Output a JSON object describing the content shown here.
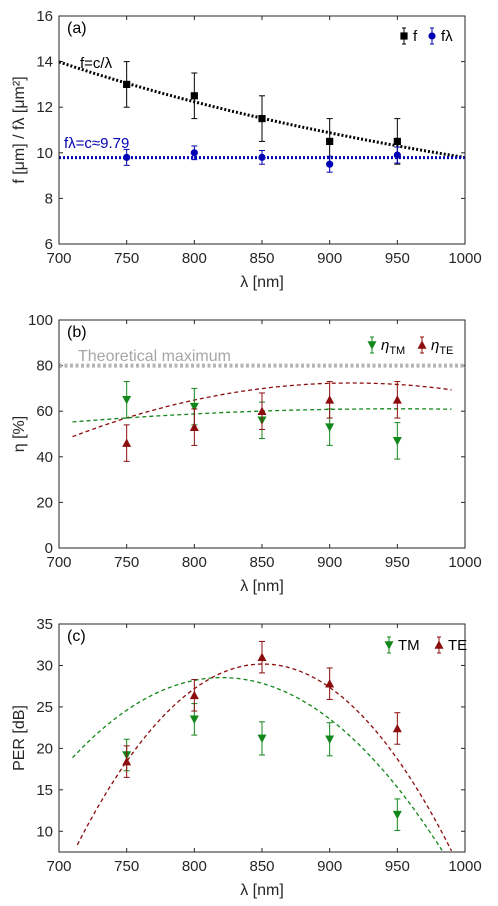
{
  "colors": {
    "black": "#000000",
    "blue": "#0000b4",
    "green": "#12871a",
    "red": "#8b0d0d",
    "gray": "#b4b4b4",
    "axis": "#262626"
  },
  "chart_data": [
    {
      "id": "a",
      "type": "scatter",
      "panel_label": "(a)",
      "xlabel": "λ [nm]",
      "ylabel": "f [μm] / fλ [μm²]",
      "xlim": [
        700,
        1000
      ],
      "ylim": [
        6,
        16
      ],
      "xticks": [
        700,
        750,
        800,
        850,
        900,
        950,
        1000
      ],
      "yticks": [
        6,
        8,
        10,
        12,
        14,
        16
      ],
      "legend_position": "top-right",
      "series": [
        {
          "name": "f",
          "marker": "square",
          "color": "#000000",
          "x": [
            750,
            800,
            850,
            900,
            950
          ],
          "y": [
            13.0,
            12.5,
            11.5,
            10.5,
            10.5
          ],
          "err": [
            1.0,
            1.0,
            1.0,
            1.0,
            1.0
          ]
        },
        {
          "name": "fλ",
          "marker": "circle",
          "color": "#0000b4",
          "x": [
            750,
            800,
            850,
            900,
            950
          ],
          "y": [
            9.8,
            10.0,
            9.8,
            9.5,
            9.9
          ],
          "err": [
            0.35,
            0.3,
            0.3,
            0.35,
            0.35
          ]
        }
      ],
      "fits": [
        {
          "label": "f=c/λ",
          "kind": "c_over_x",
          "c": 9.79,
          "x_range": [
            700,
            1000
          ],
          "color": "#000000",
          "style": "dotted"
        },
        {
          "label": "fλ=c≈9.79",
          "kind": "const",
          "c": 9.79,
          "x_range": [
            700,
            1000
          ],
          "color": "#0000b4",
          "style": "dotted"
        }
      ]
    },
    {
      "id": "b",
      "type": "scatter",
      "panel_label": "(b)",
      "xlabel": "λ [nm]",
      "ylabel": "η [%]",
      "xlim": [
        700,
        1000
      ],
      "ylim": [
        0,
        100
      ],
      "xticks": [
        700,
        750,
        800,
        850,
        900,
        950,
        1000
      ],
      "yticks": [
        0,
        20,
        40,
        60,
        80,
        100
      ],
      "legend_position": "top-right",
      "series": [
        {
          "name": "ηTM",
          "marker": "triangle-down",
          "color": "#12871a",
          "x": [
            750,
            800,
            850,
            900,
            950
          ],
          "y": [
            65,
            62,
            56,
            53,
            47
          ],
          "err": [
            8,
            8,
            8,
            8,
            8
          ]
        },
        {
          "name": "ηTE",
          "marker": "triangle-up",
          "color": "#8b0d0d",
          "x": [
            750,
            800,
            850,
            900,
            950
          ],
          "y": [
            46,
            53,
            60,
            65,
            65
          ],
          "err": [
            8,
            8,
            8,
            8,
            8
          ]
        }
      ],
      "fits": [
        {
          "kind": "poly",
          "coef": [
            -29.2,
            0.19,
            -0.0001
          ],
          "x_range": [
            710,
            990
          ],
          "color": "#12871a",
          "style": "dashed"
        },
        {
          "kind": "poly",
          "coef": [
            -392,
            1.0135,
            -0.000553
          ],
          "x_range": [
            710,
            990
          ],
          "color": "#8b0d0d",
          "style": "dashed"
        },
        {
          "kind": "const",
          "c": 80,
          "label": "Theoretical maximum",
          "x_range": [
            700,
            1000
          ],
          "color": "#b4b4b4",
          "style": "dotted-thick"
        }
      ]
    },
    {
      "id": "c",
      "type": "scatter",
      "panel_label": "(c)",
      "xlabel": "λ [nm]",
      "ylabel": "PER [dB]",
      "xlim": [
        700,
        1000
      ],
      "ylim": [
        7.5,
        35
      ],
      "xticks": [
        700,
        750,
        800,
        850,
        900,
        950,
        1000
      ],
      "yticks": [
        10,
        15,
        20,
        25,
        30,
        35
      ],
      "legend_position": "top-right",
      "series": [
        {
          "name": "TM",
          "marker": "triangle-down",
          "color": "#12871a",
          "x": [
            750,
            800,
            850,
            900,
            950
          ],
          "y": [
            19.2,
            23.5,
            21.2,
            21.1,
            12.0
          ],
          "err": [
            1.9,
            1.9,
            2.0,
            2.0,
            1.9
          ]
        },
        {
          "name": "TE",
          "marker": "triangle-up",
          "color": "#8b0d0d",
          "x": [
            750,
            800,
            850,
            900,
            950
          ],
          "y": [
            18.4,
            26.4,
            31.0,
            27.8,
            22.4
          ],
          "err": [
            1.9,
            1.9,
            1.9,
            1.9,
            1.9
          ]
        }
      ],
      "fits": [
        {
          "kind": "poly",
          "coef": [
            -503.4,
            1.2965,
            -0.00079
          ],
          "x_range": [
            710,
            990
          ],
          "color": "#12871a",
          "style": "dashed"
        },
        {
          "kind": "poly",
          "coef": [
            -809.2,
            1.9735,
            -0.00116
          ],
          "x_range": [
            710,
            990
          ],
          "color": "#8b0d0d",
          "style": "dashed"
        }
      ]
    }
  ]
}
